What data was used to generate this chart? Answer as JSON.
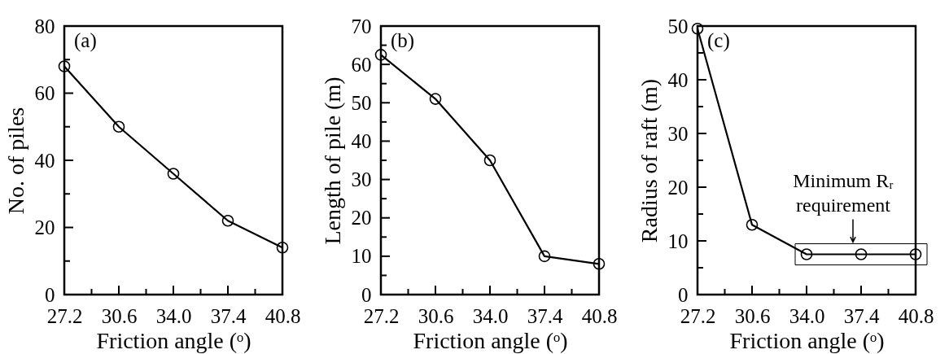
{
  "chart_data": [
    {
      "type": "line",
      "ylabel": "No. of piles",
      "xlabel": "Friction angle (ᵒ)",
      "annotations": [
        "(a)"
      ],
      "x": [
        27.2,
        30.6,
        34.0,
        37.4,
        40.8
      ],
      "marker": "circle",
      "line_style": "solid",
      "series": [
        {
          "color": "#000000",
          "values": [
            68,
            50,
            36,
            22,
            14
          ]
        }
      ],
      "xlim": [
        27.2,
        40.8
      ],
      "xticks": [
        27.2,
        {
          "value": 28.9,
          "label": null
        },
        30.6,
        {
          "value": 32.3,
          "label": null
        },
        {
          "value": 34.0,
          "label": "34.0"
        },
        {
          "value": 35.7,
          "label": null
        },
        37.4,
        {
          "value": 39.1,
          "label": null
        },
        40.8
      ],
      "ylim": [
        0,
        80
      ],
      "yticks": [
        0,
        {
          "value": 10,
          "label": null
        },
        20,
        {
          "value": 30,
          "label": null
        },
        40,
        {
          "value": 50,
          "label": null
        },
        60,
        {
          "value": 70,
          "label": null
        },
        80
      ]
    },
    {
      "type": "line",
      "ylabel": "Length of pile (m)",
      "xlabel": "Friction angle (ᵒ)",
      "annotations": [
        "(b)"
      ],
      "x": [
        27.2,
        30.6,
        34.0,
        37.4,
        40.8
      ],
      "marker": "circle",
      "line_style": "solid",
      "series": [
        {
          "color": "#000000",
          "values": [
            62.5,
            51,
            35,
            10,
            8
          ]
        }
      ],
      "xlim": [
        27.2,
        40.8
      ],
      "xticks": [
        27.2,
        {
          "value": 28.9,
          "label": null
        },
        30.6,
        {
          "value": 32.3,
          "label": null
        },
        {
          "value": 34.0,
          "label": "34.0"
        },
        {
          "value": 35.7,
          "label": null
        },
        37.4,
        {
          "value": 39.1,
          "label": null
        },
        40.8
      ],
      "ylim": [
        0,
        70
      ],
      "yticks": [
        0,
        {
          "value": 5,
          "label": null
        },
        10,
        {
          "value": 15,
          "label": null
        },
        20,
        {
          "value": 25,
          "label": null
        },
        30,
        {
          "value": 35,
          "label": null
        },
        40,
        {
          "value": 45,
          "label": null
        },
        50,
        {
          "value": 55,
          "label": null
        },
        60,
        {
          "value": 65,
          "label": null
        },
        70
      ]
    },
    {
      "type": "line",
      "ylabel": "Radius of raft (m)",
      "xlabel": "Friction angle (ᵒ)",
      "annotations": [
        "(c)",
        {
          "text": "Minimum Rᵣ\nrequirement",
          "x": 37.4,
          "y": 7.5
        }
      ],
      "x": [
        27.2,
        30.6,
        34.0,
        37.4,
        40.8
      ],
      "marker": "circle",
      "line_style": "solid",
      "series": [
        {
          "color": "#000000",
          "values": [
            49.5,
            13,
            7.5,
            7.5,
            7.5
          ]
        }
      ],
      "xlim": [
        27.2,
        40.8
      ],
      "xticks": [
        27.2,
        {
          "value": 28.9,
          "label": null
        },
        30.6,
        {
          "value": 32.3,
          "label": null
        },
        {
          "value": 34.0,
          "label": "34.0"
        },
        {
          "value": 35.7,
          "label": null
        },
        37.4,
        {
          "value": 39.1,
          "label": null
        },
        40.8
      ],
      "ylim": [
        0,
        50
      ],
      "yticks": [
        0,
        {
          "value": 5,
          "label": null
        },
        10,
        {
          "value": 15,
          "label": null
        },
        20,
        {
          "value": 25,
          "label": null
        },
        30,
        {
          "value": 35,
          "label": null
        },
        40,
        {
          "value": 45,
          "label": null
        },
        50
      ]
    }
  ]
}
